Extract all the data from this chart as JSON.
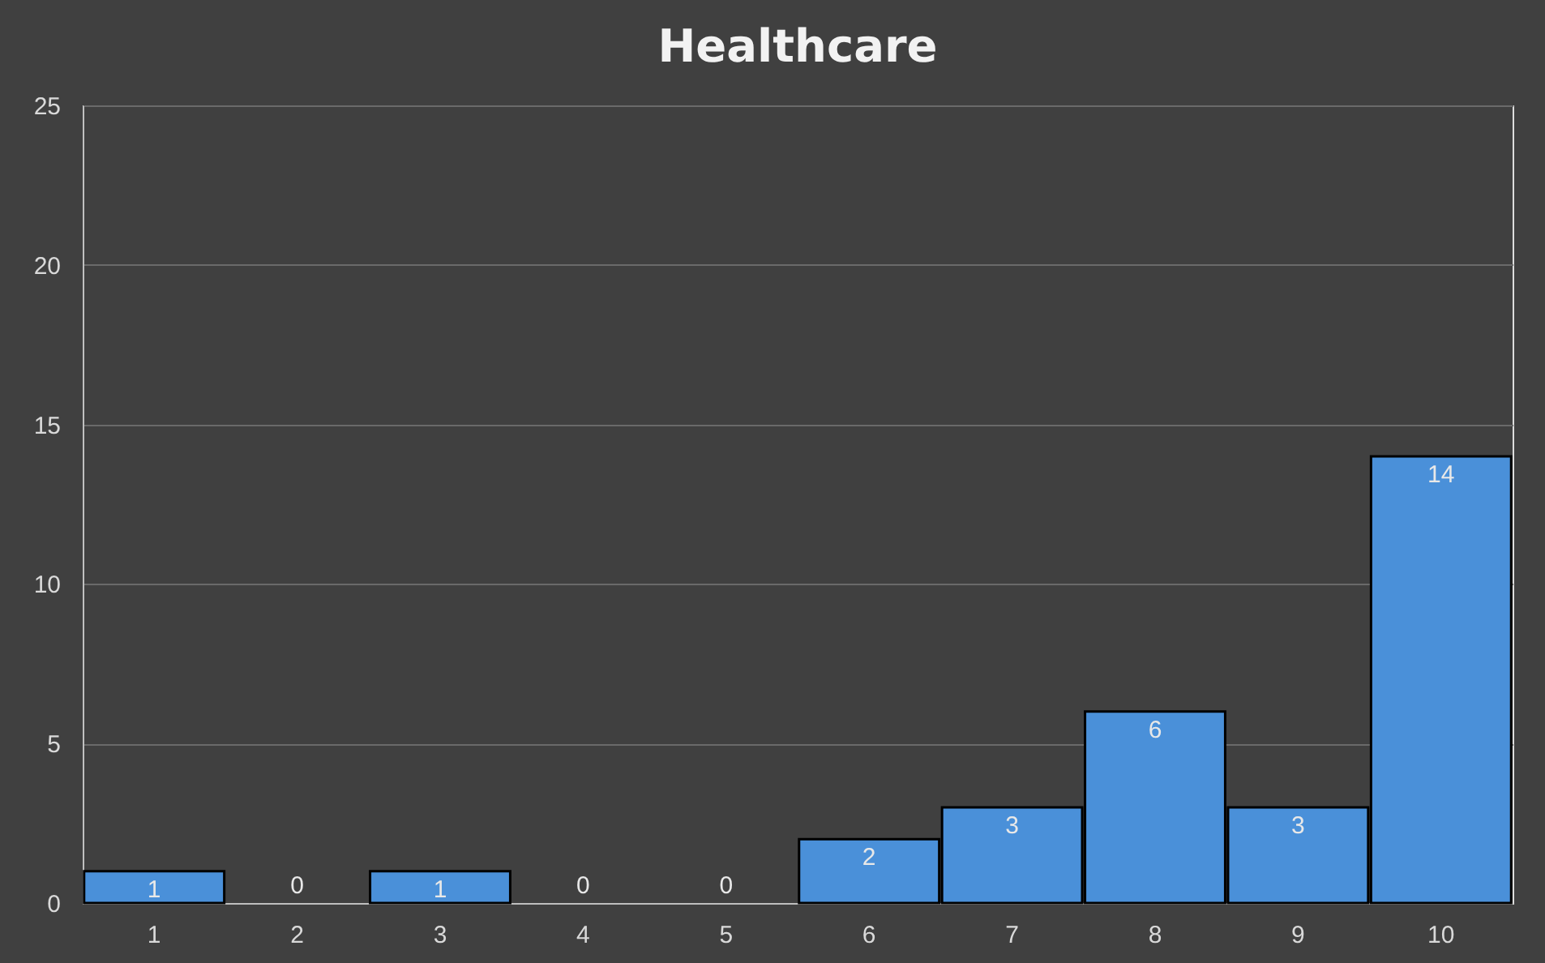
{
  "chart_data": {
    "type": "bar",
    "title": "Healthcare",
    "categories": [
      "1",
      "2",
      "3",
      "4",
      "5",
      "6",
      "7",
      "8",
      "9",
      "10"
    ],
    "values": [
      1,
      0,
      1,
      0,
      0,
      2,
      3,
      6,
      3,
      14
    ],
    "color": "#4a90d9",
    "ylim": [
      0,
      25
    ],
    "yticks": [
      0,
      5,
      10,
      15,
      20,
      25
    ],
    "grid": "y",
    "data_labels": true
  }
}
